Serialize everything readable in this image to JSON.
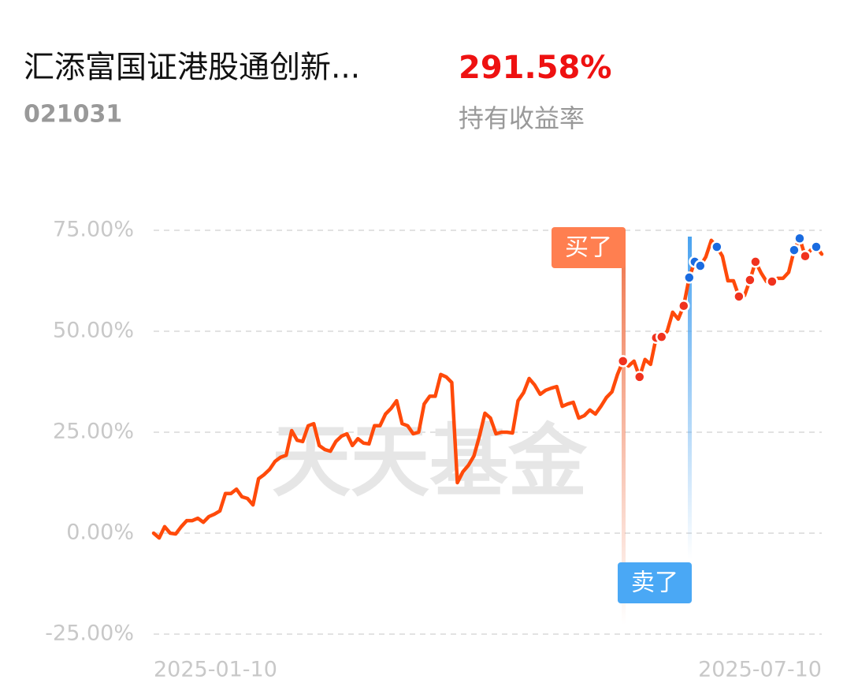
{
  "header": {
    "title": "汇添富国证港股通创新...",
    "code": "021031",
    "return_value": "291.58%",
    "return_label": "持有收益率"
  },
  "chart_data": {
    "type": "line",
    "watermark": "天天基金",
    "buy_label": "买了",
    "sell_label": "卖了",
    "categories": [
      "2025-01-10",
      null,
      null,
      null,
      null,
      null,
      null,
      null,
      null,
      null,
      null,
      null,
      null,
      null,
      null,
      null,
      null,
      null,
      null,
      null,
      null,
      null,
      null,
      null,
      null,
      null,
      null,
      null,
      null,
      null,
      null,
      null,
      null,
      null,
      null,
      null,
      null,
      null,
      null,
      null,
      null,
      null,
      null,
      null,
      null,
      null,
      null,
      null,
      null,
      null,
      null,
      null,
      null,
      null,
      null,
      null,
      null,
      null,
      null,
      null,
      null,
      null,
      null,
      null,
      null,
      null,
      null,
      null,
      null,
      null,
      null,
      null,
      null,
      null,
      null,
      null,
      null,
      null,
      null,
      null,
      null,
      null,
      null,
      null,
      null,
      null,
      null,
      null,
      null,
      null,
      null,
      null,
      null,
      null,
      null,
      null,
      null,
      null,
      null,
      null,
      null,
      null,
      null,
      null,
      null,
      null,
      null,
      null,
      null,
      null,
      null,
      null,
      null,
      null,
      null,
      null,
      null,
      null,
      null,
      null,
      null,
      "2025-07-10"
    ],
    "series": [
      {
        "color": "#ff4a0a",
        "style": "line",
        "values": [
          0,
          -1.2,
          1.6,
          0,
          -0.2,
          1.6,
          3.1,
          3.1,
          3.7,
          2.7,
          4.1,
          4.7,
          5.5,
          9.8,
          9.8,
          10.9,
          9.0,
          8.6,
          7.0,
          13.5,
          14.5,
          15.8,
          17.8,
          18.8,
          19.3,
          25.4,
          23.0,
          22.7,
          26.6,
          27.1,
          21.7,
          20.7,
          20.3,
          22.7,
          24.0,
          24.6,
          21.7,
          23.4,
          22.3,
          22.1,
          26.6,
          26.6,
          29.5,
          30.9,
          32.8,
          27.1,
          26.6,
          24.6,
          25.0,
          32.0,
          33.9,
          33.9,
          39.3,
          38.7,
          37.3,
          12.5,
          15.2,
          16.8,
          19.1,
          24.0,
          29.7,
          28.5,
          24.6,
          25.0,
          25.0,
          24.8,
          32.8,
          34.8,
          38.3,
          36.7,
          34.4,
          35.4,
          35.9,
          36.3,
          31.4,
          32.0,
          32.4,
          28.5,
          29.1,
          30.5,
          29.5,
          31.4,
          33.6,
          35.0,
          39.3,
          42.6,
          41.4,
          42.6,
          38.7,
          43.0,
          41.8,
          48.4,
          48.6,
          50.0,
          54.7,
          53.0,
          56.3,
          63.3,
          67.2,
          66.2,
          68.4,
          72.5,
          70.9,
          68.6,
          62.5,
          62.5,
          58.6,
          58.8,
          62.7,
          67.2,
          64.5,
          62.3,
          62.3,
          63.1,
          63.1,
          64.6,
          70.1,
          73.0,
          68.6,
          70.1,
          70.9,
          69.1
        ]
      },
      {
        "color": "#f0321e",
        "style": "dots",
        "values": [
          null,
          null,
          null,
          null,
          null,
          null,
          null,
          null,
          null,
          null,
          null,
          null,
          null,
          null,
          null,
          null,
          null,
          null,
          null,
          null,
          null,
          null,
          null,
          null,
          null,
          null,
          null,
          null,
          null,
          null,
          null,
          null,
          null,
          null,
          null,
          null,
          null,
          null,
          null,
          null,
          null,
          null,
          null,
          null,
          null,
          null,
          null,
          null,
          null,
          null,
          null,
          null,
          null,
          null,
          null,
          null,
          null,
          null,
          null,
          null,
          null,
          null,
          null,
          null,
          null,
          null,
          null,
          null,
          null,
          null,
          null,
          null,
          null,
          null,
          null,
          null,
          null,
          null,
          null,
          null,
          null,
          null,
          null,
          null,
          null,
          42.6,
          null,
          null,
          38.7,
          null,
          null,
          48.4,
          48.6,
          null,
          null,
          null,
          56.3,
          null,
          null,
          null,
          null,
          null,
          null,
          null,
          null,
          null,
          58.6,
          null,
          62.7,
          67.2,
          null,
          null,
          62.3,
          null,
          null,
          null,
          null,
          null,
          68.6,
          null,
          null,
          null
        ]
      },
      {
        "color": "#1a6be0",
        "style": "dots",
        "values": [
          null,
          null,
          null,
          null,
          null,
          null,
          null,
          null,
          null,
          null,
          null,
          null,
          null,
          null,
          null,
          null,
          null,
          null,
          null,
          null,
          null,
          null,
          null,
          null,
          null,
          null,
          null,
          null,
          null,
          null,
          null,
          null,
          null,
          null,
          null,
          null,
          null,
          null,
          null,
          null,
          null,
          null,
          null,
          null,
          null,
          null,
          null,
          null,
          null,
          null,
          null,
          null,
          null,
          null,
          null,
          null,
          null,
          null,
          null,
          null,
          null,
          null,
          null,
          null,
          null,
          null,
          null,
          null,
          null,
          null,
          null,
          null,
          null,
          null,
          null,
          null,
          null,
          null,
          null,
          null,
          null,
          null,
          null,
          null,
          null,
          null,
          null,
          null,
          null,
          null,
          null,
          null,
          null,
          null,
          null,
          null,
          null,
          63.3,
          67.2,
          66.2,
          null,
          null,
          70.9,
          null,
          null,
          null,
          null,
          null,
          null,
          null,
          null,
          null,
          null,
          null,
          null,
          null,
          70.1,
          73.0,
          null,
          null,
          70.9,
          null
        ]
      }
    ],
    "ylim": [
      -25,
      75
    ],
    "yticks": [
      {
        "value": -25,
        "label": "-25.00%"
      },
      {
        "value": 0,
        "label": "0.00%"
      },
      {
        "value": 25,
        "label": "25.00%"
      },
      {
        "value": 50,
        "label": "50.00%"
      },
      {
        "value": 75,
        "label": "75.00%"
      }
    ],
    "grid": true
  }
}
